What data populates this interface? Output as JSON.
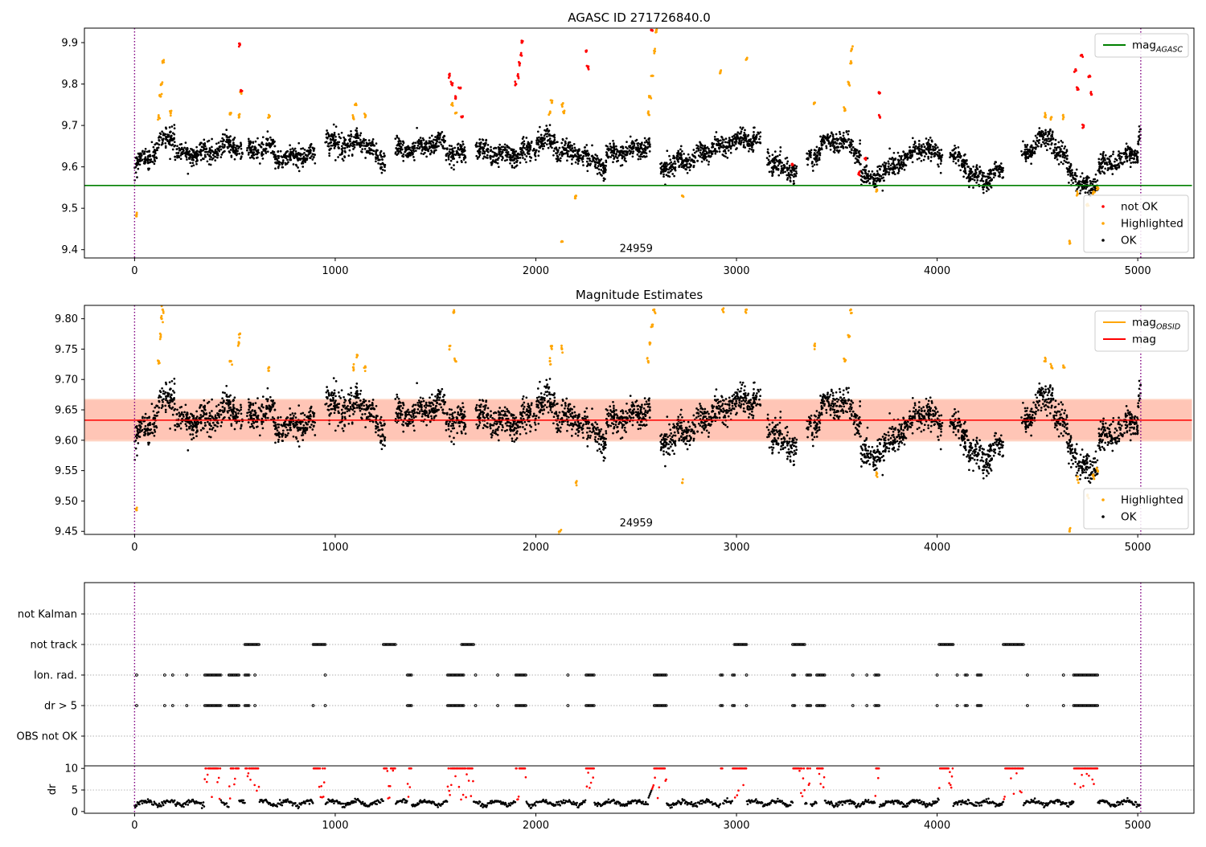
{
  "chart_data": [
    {
      "type": "scatter",
      "title": "AGASC ID 271726840.0",
      "xlim": [
        -250,
        5280
      ],
      "ylim": [
        9.38,
        9.935
      ],
      "xticks": [
        0,
        1000,
        2000,
        3000,
        4000,
        5000
      ],
      "yticks": [
        9.4,
        9.5,
        9.6,
        9.7,
        9.8,
        9.9
      ],
      "grid": false,
      "annotation": {
        "text": "24959",
        "x": 2500,
        "y": 9.395
      },
      "vlines": [
        0,
        5015
      ],
      "hline": {
        "name": "mag_AGASC",
        "value": 9.555,
        "color": "#008000"
      },
      "legend_top": {
        "position": "upper-right",
        "entries": [
          {
            "label": "mag",
            "sub": "AGASC",
            "color": "#008000",
            "kind": "line"
          }
        ]
      },
      "legend_bottom": {
        "position": "lower-right",
        "entries": [
          {
            "label": "not OK",
            "color": "#ff0000",
            "kind": "dot"
          },
          {
            "label": "Highlighted",
            "color": "#ffa500",
            "kind": "dot"
          },
          {
            "label": "OK",
            "color": "#000000",
            "kind": "dot"
          }
        ]
      },
      "series": [
        {
          "name": "OK",
          "color": "#000000",
          "points": "generated from segments"
        },
        {
          "name": "Highlighted",
          "color": "#ffa500",
          "points": [
            [
              10,
              9.485
            ],
            [
              120,
              9.72
            ],
            [
              130,
              9.77
            ],
            [
              135,
              9.8
            ],
            [
              140,
              9.855
            ],
            [
              180,
              9.73
            ],
            [
              480,
              9.73
            ],
            [
              520,
              9.725
            ],
            [
              530,
              9.78
            ],
            [
              670,
              9.72
            ],
            [
              1090,
              9.72
            ],
            [
              1100,
              9.75
            ],
            [
              1150,
              9.725
            ],
            [
              1580,
              9.75
            ],
            [
              1600,
              9.73
            ],
            [
              2070,
              9.73
            ],
            [
              2080,
              9.755
            ],
            [
              2130,
              9.75
            ],
            [
              2140,
              9.73
            ],
            [
              2130,
              9.42
            ],
            [
              2200,
              9.53
            ],
            [
              2560,
              9.73
            ],
            [
              2570,
              9.77
            ],
            [
              2580,
              9.82
            ],
            [
              2590,
              9.88
            ],
            [
              2600,
              9.93
            ],
            [
              2730,
              9.53
            ],
            [
              2920,
              9.83
            ],
            [
              3050,
              9.86
            ],
            [
              3390,
              9.755
            ],
            [
              3540,
              9.74
            ],
            [
              3560,
              9.8
            ],
            [
              3570,
              9.85
            ],
            [
              3575,
              9.885
            ],
            [
              3700,
              9.545
            ],
            [
              4540,
              9.725
            ],
            [
              4570,
              9.72
            ],
            [
              4630,
              9.72
            ],
            [
              4660,
              9.42
            ],
            [
              4700,
              9.535
            ],
            [
              4750,
              9.51
            ],
            [
              4780,
              9.54
            ],
            [
              4800,
              9.55
            ]
          ]
        },
        {
          "name": "not OK",
          "color": "#ff0000",
          "points": [
            [
              525,
              9.895
            ],
            [
              530,
              9.785
            ],
            [
              1570,
              9.82
            ],
            [
              1580,
              9.8
            ],
            [
              1600,
              9.765
            ],
            [
              1620,
              9.79
            ],
            [
              1630,
              9.72
            ],
            [
              1900,
              9.8
            ],
            [
              1910,
              9.82
            ],
            [
              1920,
              9.85
            ],
            [
              1925,
              9.87
            ],
            [
              1930,
              9.9
            ],
            [
              2250,
              9.88
            ],
            [
              2260,
              9.84
            ],
            [
              2580,
              9.93
            ],
            [
              3280,
              9.605
            ],
            [
              3610,
              9.585
            ],
            [
              3640,
              9.62
            ],
            [
              3710,
              9.78
            ],
            [
              3715,
              9.72
            ],
            [
              4690,
              9.835
            ],
            [
              4700,
              9.79
            ],
            [
              4720,
              9.87
            ],
            [
              4730,
              9.7
            ],
            [
              4760,
              9.82
            ],
            [
              4770,
              9.775
            ]
          ]
        }
      ]
    },
    {
      "type": "scatter",
      "title": "Magnitude Estimates",
      "xlim": [
        -250,
        5280
      ],
      "ylim": [
        9.445,
        9.822
      ],
      "xticks": [
        0,
        1000,
        2000,
        3000,
        4000,
        5000
      ],
      "yticks": [
        9.45,
        9.5,
        9.55,
        9.6,
        9.65,
        9.7,
        9.75,
        9.8
      ],
      "grid": false,
      "annotation": {
        "text": "24959",
        "x": 2500,
        "y": 9.458
      },
      "vlines": [
        0,
        5015
      ],
      "band_obsid": {
        "low": 9.598,
        "high": 9.668,
        "color": "#ffa07a"
      },
      "band_mag": {
        "low": 9.601,
        "high": 9.666,
        "color": "#ffc0cb"
      },
      "hline_obsid": {
        "name": "mag_OBSID",
        "value": 9.633,
        "color": "#ffa500"
      },
      "hline_mag": {
        "name": "mag",
        "value": 9.633,
        "color": "#ff0000"
      },
      "legend_top": {
        "position": "upper-right",
        "entries": [
          {
            "label": "mag",
            "sub": "OBSID",
            "color": "#ffa500",
            "kind": "line"
          },
          {
            "label": "mag",
            "sub": "",
            "color": "#ff0000",
            "kind": "line"
          }
        ]
      },
      "legend_bottom": {
        "position": "lower-right",
        "entries": [
          {
            "label": "Highlighted",
            "color": "#ffa500",
            "kind": "dot"
          },
          {
            "label": "OK",
            "color": "#000000",
            "kind": "dot"
          }
        ]
      },
      "series": [
        {
          "name": "OK",
          "color": "#000000",
          "points": "generated from segments"
        },
        {
          "name": "Highlighted",
          "color": "#ffa500",
          "points": [
            [
              10,
              9.485
            ],
            [
              120,
              9.73
            ],
            [
              130,
              9.77
            ],
            [
              135,
              9.8
            ],
            [
              140,
              9.815
            ],
            [
              480,
              9.73
            ],
            [
              520,
              9.76
            ],
            [
              525,
              9.775
            ],
            [
              670,
              9.72
            ],
            [
              1090,
              9.72
            ],
            [
              1110,
              9.74
            ],
            [
              1150,
              9.72
            ],
            [
              1570,
              9.755
            ],
            [
              1590,
              9.81
            ],
            [
              1600,
              9.73
            ],
            [
              2070,
              9.73
            ],
            [
              2080,
              9.755
            ],
            [
              2130,
              9.75
            ],
            [
              2120,
              9.45
            ],
            [
              2200,
              9.53
            ],
            [
              2560,
              9.73
            ],
            [
              2570,
              9.76
            ],
            [
              2580,
              9.79
            ],
            [
              2590,
              9.815
            ],
            [
              2730,
              9.53
            ],
            [
              2930,
              9.815
            ],
            [
              3050,
              9.815
            ],
            [
              3390,
              9.755
            ],
            [
              3540,
              9.73
            ],
            [
              3560,
              9.77
            ],
            [
              3570,
              9.815
            ],
            [
              3700,
              9.545
            ],
            [
              4540,
              9.73
            ],
            [
              4570,
              9.72
            ],
            [
              4630,
              9.72
            ],
            [
              4660,
              9.45
            ],
            [
              4700,
              9.535
            ],
            [
              4750,
              9.51
            ],
            [
              4780,
              9.54
            ],
            [
              4800,
              9.55
            ]
          ]
        }
      ]
    },
    {
      "type": "scatter",
      "title": "",
      "xlim": [
        -250,
        5280
      ],
      "categories": [
        "not Kalman",
        "not track",
        "Ion. rad.",
        "dr > 5",
        "OBS not OK"
      ],
      "vlines": [
        0,
        5015
      ],
      "intervals": {
        "not track": [
          [
            550,
            620
          ],
          [
            890,
            950
          ],
          [
            1240,
            1300
          ],
          [
            1630,
            1690
          ],
          [
            2990,
            3050
          ],
          [
            3280,
            3340
          ],
          [
            4010,
            4080
          ],
          [
            4330,
            4430
          ]
        ],
        "Ion. rad.": [
          [
            10,
            10
          ],
          [
            150,
            150
          ],
          [
            190,
            190
          ],
          [
            260,
            260
          ],
          [
            350,
            430
          ],
          [
            470,
            520
          ],
          [
            550,
            570
          ],
          [
            600,
            600
          ],
          [
            950,
            950
          ],
          [
            1360,
            1380
          ],
          [
            1560,
            1640
          ],
          [
            1700,
            1700
          ],
          [
            1810,
            1810
          ],
          [
            1900,
            1950
          ],
          [
            2160,
            2160
          ],
          [
            2250,
            2290
          ],
          [
            2590,
            2650
          ],
          [
            2920,
            2930
          ],
          [
            2980,
            2990
          ],
          [
            3050,
            3050
          ],
          [
            3280,
            3290
          ],
          [
            3350,
            3370
          ],
          [
            3400,
            3440
          ],
          [
            3580,
            3580
          ],
          [
            3650,
            3650
          ],
          [
            3690,
            3710
          ],
          [
            4000,
            4000
          ],
          [
            4100,
            4100
          ],
          [
            4140,
            4150
          ],
          [
            4200,
            4220
          ],
          [
            4450,
            4450
          ],
          [
            4630,
            4630
          ],
          [
            4680,
            4800
          ]
        ],
        "dr > 5": [
          [
            10,
            10
          ],
          [
            150,
            150
          ],
          [
            190,
            190
          ],
          [
            260,
            260
          ],
          [
            350,
            430
          ],
          [
            470,
            520
          ],
          [
            550,
            570
          ],
          [
            600,
            600
          ],
          [
            890,
            890
          ],
          [
            950,
            950
          ],
          [
            1360,
            1380
          ],
          [
            1560,
            1640
          ],
          [
            1700,
            1700
          ],
          [
            1810,
            1810
          ],
          [
            1900,
            1950
          ],
          [
            2160,
            2160
          ],
          [
            2250,
            2290
          ],
          [
            2590,
            2650
          ],
          [
            2920,
            2930
          ],
          [
            2980,
            2990
          ],
          [
            3050,
            3050
          ],
          [
            3280,
            3290
          ],
          [
            3350,
            3370
          ],
          [
            3400,
            3440
          ],
          [
            3580,
            3580
          ],
          [
            3650,
            3650
          ],
          [
            3690,
            3710
          ],
          [
            4000,
            4000
          ],
          [
            4100,
            4100
          ],
          [
            4140,
            4150
          ],
          [
            4200,
            4220
          ],
          [
            4450,
            4450
          ],
          [
            4630,
            4630
          ],
          [
            4680,
            4800
          ]
        ]
      }
    },
    {
      "type": "scatter",
      "title": "",
      "xlim": [
        -250,
        5280
      ],
      "ylim": [
        -0.4,
        10.6
      ],
      "xticks": [
        0,
        1000,
        2000,
        3000,
        4000,
        5000
      ],
      "yticks": [
        0,
        5,
        10
      ],
      "ylabel": "dr",
      "vlines": [
        0,
        5015
      ],
      "threshold": 5,
      "flagged_intervals": [
        [
          350,
          430
        ],
        [
          470,
          520
        ],
        [
          550,
          620
        ],
        [
          890,
          950
        ],
        [
          1240,
          1300
        ],
        [
          1360,
          1380
        ],
        [
          1560,
          1690
        ],
        [
          1900,
          1950
        ],
        [
          2250,
          2290
        ],
        [
          2590,
          2650
        ],
        [
          2920,
          2930
        ],
        [
          2980,
          3050
        ],
        [
          3280,
          3340
        ],
        [
          3350,
          3370
        ],
        [
          3400,
          3440
        ],
        [
          3690,
          3710
        ],
        [
          4010,
          4080
        ],
        [
          4330,
          4430
        ],
        [
          4680,
          4800
        ]
      ]
    }
  ]
}
